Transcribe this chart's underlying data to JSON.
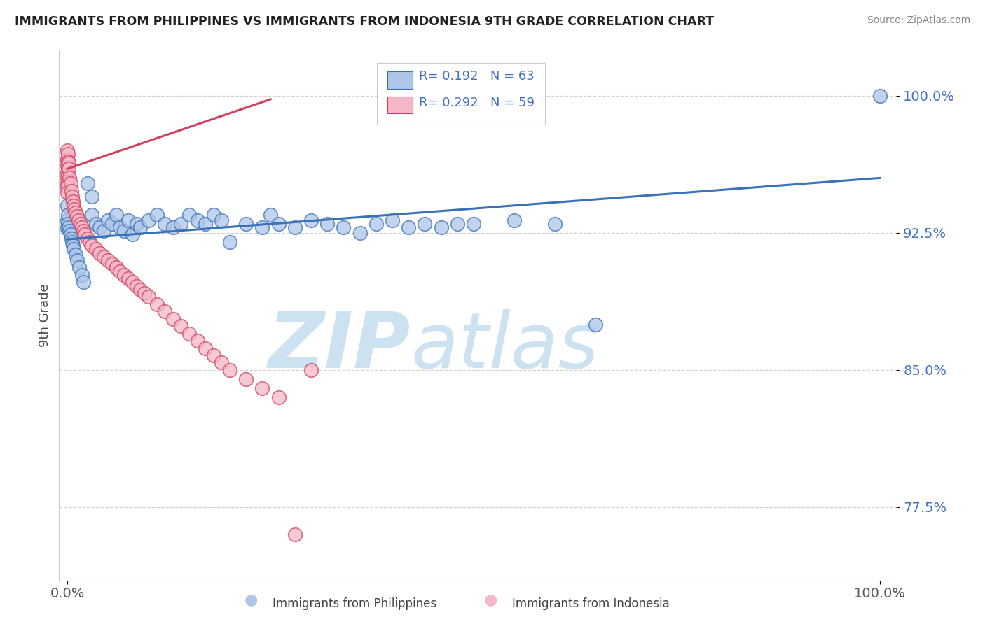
{
  "title": "IMMIGRANTS FROM PHILIPPINES VS IMMIGRANTS FROM INDONESIA 9TH GRADE CORRELATION CHART",
  "source": "Source: ZipAtlas.com",
  "ylabel": "9th Grade",
  "legend_R1": "R= 0.192",
  "legend_N1": "N = 63",
  "legend_R2": "R= 0.292",
  "legend_N2": "N = 59",
  "color_blue": "#aec6e8",
  "color_pink": "#f4b8c8",
  "color_blue_line": "#3a72b8",
  "color_pink_line": "#d04060",
  "color_ytick": "#4472c4",
  "watermark_color": "#c8dff0",
  "phil_x": [
    0.0,
    0.0,
    0.0,
    0.001,
    0.001,
    0.002,
    0.003,
    0.004,
    0.005,
    0.006,
    0.007,
    0.008,
    0.01,
    0.012,
    0.015,
    0.018,
    0.02,
    0.025,
    0.03,
    0.03,
    0.035,
    0.04,
    0.045,
    0.05,
    0.055,
    0.06,
    0.065,
    0.07,
    0.075,
    0.08,
    0.085,
    0.09,
    0.1,
    0.11,
    0.12,
    0.13,
    0.14,
    0.15,
    0.16,
    0.17,
    0.18,
    0.19,
    0.2,
    0.22,
    0.24,
    0.25,
    0.26,
    0.28,
    0.3,
    0.32,
    0.34,
    0.36,
    0.38,
    0.4,
    0.42,
    0.44,
    0.46,
    0.48,
    0.5,
    0.55,
    0.6,
    0.65,
    1.0
  ],
  "phil_y": [
    0.9275,
    0.932,
    0.94,
    0.935,
    0.93,
    0.928,
    0.926,
    0.924,
    0.922,
    0.92,
    0.918,
    0.916,
    0.913,
    0.91,
    0.906,
    0.902,
    0.898,
    0.952,
    0.945,
    0.935,
    0.93,
    0.928,
    0.926,
    0.932,
    0.93,
    0.935,
    0.928,
    0.926,
    0.932,
    0.924,
    0.93,
    0.928,
    0.932,
    0.935,
    0.93,
    0.928,
    0.93,
    0.935,
    0.932,
    0.93,
    0.935,
    0.932,
    0.92,
    0.93,
    0.928,
    0.935,
    0.93,
    0.928,
    0.932,
    0.93,
    0.928,
    0.925,
    0.93,
    0.932,
    0.928,
    0.93,
    0.928,
    0.93,
    0.93,
    0.932,
    0.93,
    0.875,
    1.0
  ],
  "indo_x": [
    0.0,
    0.0,
    0.0,
    0.0,
    0.0,
    0.0,
    0.0,
    0.0,
    0.001,
    0.001,
    0.001,
    0.002,
    0.002,
    0.003,
    0.004,
    0.005,
    0.006,
    0.007,
    0.008,
    0.009,
    0.01,
    0.012,
    0.014,
    0.016,
    0.018,
    0.02,
    0.022,
    0.025,
    0.028,
    0.03,
    0.035,
    0.04,
    0.045,
    0.05,
    0.055,
    0.06,
    0.065,
    0.07,
    0.075,
    0.08,
    0.085,
    0.09,
    0.095,
    0.1,
    0.11,
    0.12,
    0.13,
    0.14,
    0.15,
    0.16,
    0.17,
    0.18,
    0.19,
    0.2,
    0.22,
    0.24,
    0.26,
    0.28,
    0.3
  ],
  "indo_y": [
    0.97,
    0.965,
    0.962,
    0.958,
    0.955,
    0.952,
    0.95,
    0.947,
    0.968,
    0.964,
    0.96,
    0.963,
    0.96,
    0.955,
    0.952,
    0.948,
    0.945,
    0.942,
    0.94,
    0.938,
    0.936,
    0.934,
    0.932,
    0.93,
    0.928,
    0.926,
    0.924,
    0.922,
    0.92,
    0.918,
    0.916,
    0.914,
    0.912,
    0.91,
    0.908,
    0.906,
    0.904,
    0.902,
    0.9,
    0.898,
    0.896,
    0.894,
    0.892,
    0.89,
    0.886,
    0.882,
    0.878,
    0.874,
    0.87,
    0.866,
    0.862,
    0.858,
    0.854,
    0.85,
    0.845,
    0.84,
    0.835,
    0.76,
    0.85
  ],
  "phil_line_x": [
    0.0,
    1.0
  ],
  "phil_line_y": [
    0.9215,
    0.955
  ],
  "indo_line_x": [
    0.0,
    0.25
  ],
  "indo_line_y": [
    0.96,
    0.998
  ],
  "ylim": [
    0.735,
    1.025
  ],
  "xlim": [
    -0.01,
    1.02
  ],
  "ytick_vals": [
    0.775,
    0.85,
    0.925,
    1.0
  ],
  "ytick_labels": [
    "77.5%",
    "85.0%",
    "92.5%",
    "100.0%"
  ],
  "xtick_vals": [
    0.0,
    1.0
  ],
  "xtick_labels": [
    "0.0%",
    "100.0%"
  ],
  "bottom_label1": "Immigrants from Philippines",
  "bottom_label2": "Immigrants from Indonesia"
}
